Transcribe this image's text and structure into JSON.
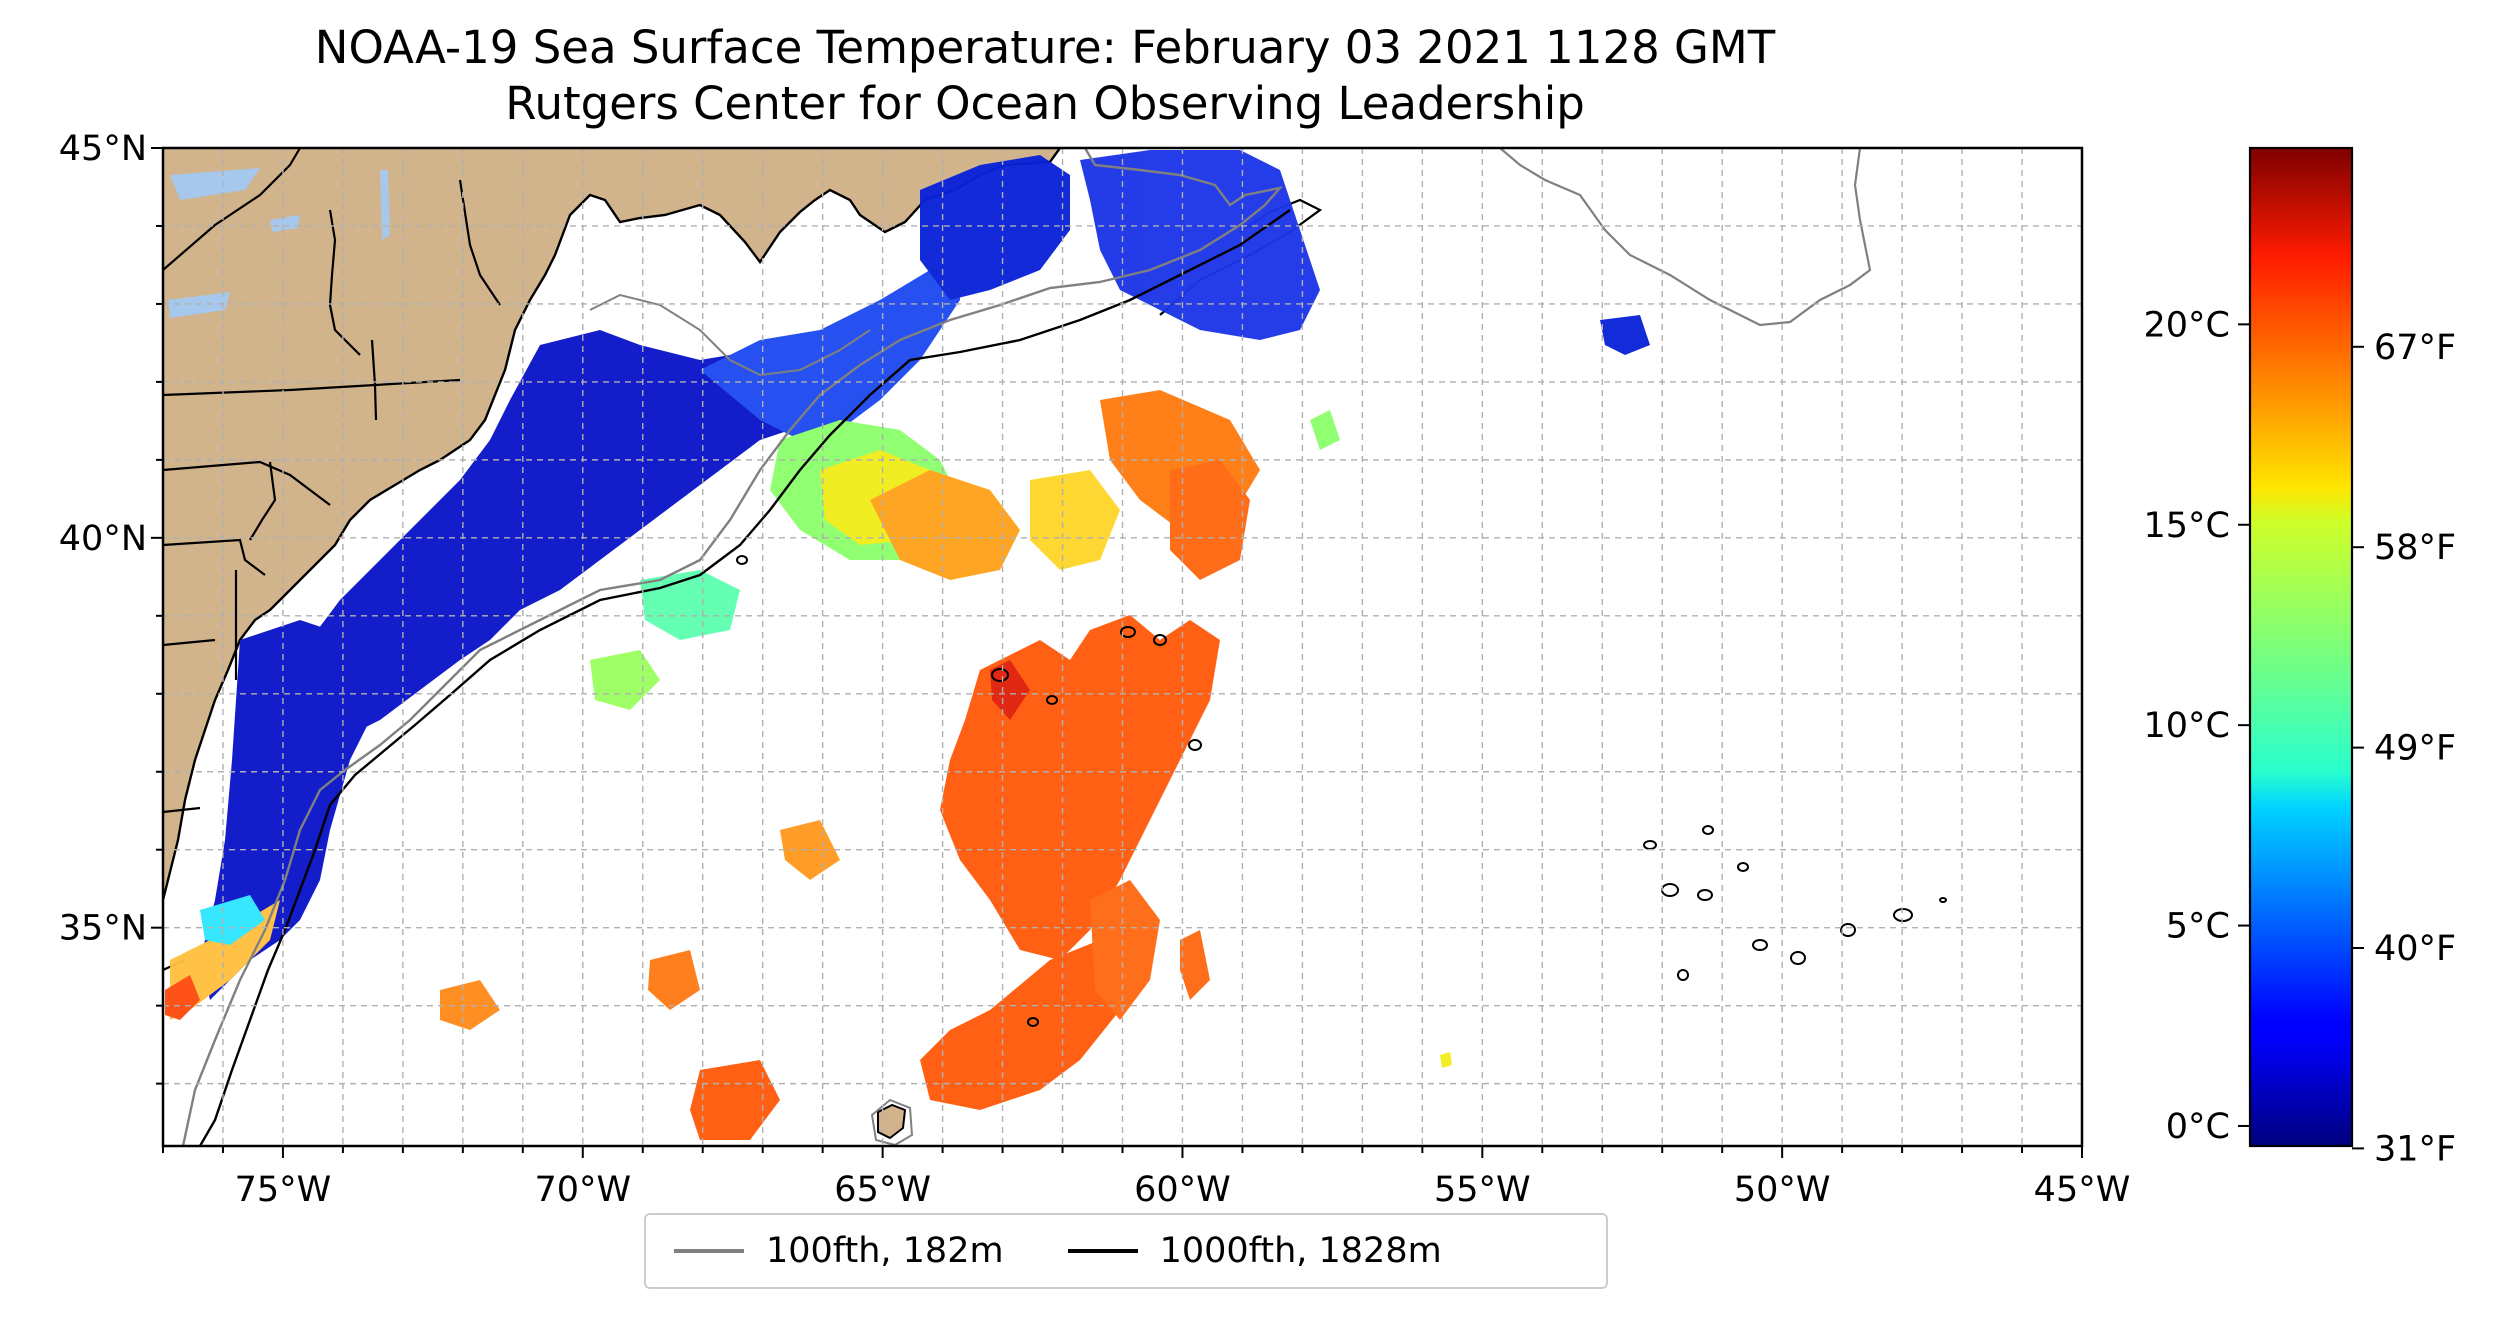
{
  "title": "NOAA-19 Sea Surface Temperature: February 03 2021 1128 GMT",
  "subtitle": "Rutgers Center for Ocean Observing Leadership",
  "map": {
    "lon_range": [
      -77,
      -45
    ],
    "lat_range": [
      32.2,
      45
    ],
    "lon_ticks": [
      {
        "value": -75,
        "label": "75°W"
      },
      {
        "value": -70,
        "label": "70°W"
      },
      {
        "value": -65,
        "label": "65°W"
      },
      {
        "value": -60,
        "label": "60°W"
      },
      {
        "value": -55,
        "label": "55°W"
      },
      {
        "value": -50,
        "label": "50°W"
      },
      {
        "value": -45,
        "label": "45°W"
      }
    ],
    "lat_ticks": [
      {
        "value": 45,
        "label": "45°N"
      },
      {
        "value": 40,
        "label": "40°N"
      },
      {
        "value": 35,
        "label": "35°N"
      }
    ],
    "grid": "dashed, every 1 degree",
    "colors": {
      "land": "#d2b48c",
      "lakes": "#a6c8ec",
      "ocean_no_data": "#ffffff",
      "isobath_100fth": "#808080",
      "isobath_1000fth": "#000000"
    }
  },
  "legend": {
    "placement": "bottom-center",
    "items": [
      {
        "label": "100fth, 182m",
        "color": "#808080"
      },
      {
        "label": "1000fth, 1828m",
        "color": "#000000"
      }
    ]
  },
  "colorbar": {
    "colormap": "jet",
    "range_c": [
      -0.5,
      24.4
    ],
    "celsius_ticks": [
      {
        "value": 0,
        "label": "0°C"
      },
      {
        "value": 5,
        "label": "5°C"
      },
      {
        "value": 10,
        "label": "10°C"
      },
      {
        "value": 15,
        "label": "15°C"
      },
      {
        "value": 20,
        "label": "20°C"
      }
    ],
    "fahrenheit_ticks": [
      {
        "value_c": -0.56,
        "label": "31°F"
      },
      {
        "value_c": 4.44,
        "label": "40°F"
      },
      {
        "value_c": 9.44,
        "label": "49°F"
      },
      {
        "value_c": 14.44,
        "label": "58°F"
      },
      {
        "value_c": 19.44,
        "label": "67°F"
      }
    ]
  }
}
